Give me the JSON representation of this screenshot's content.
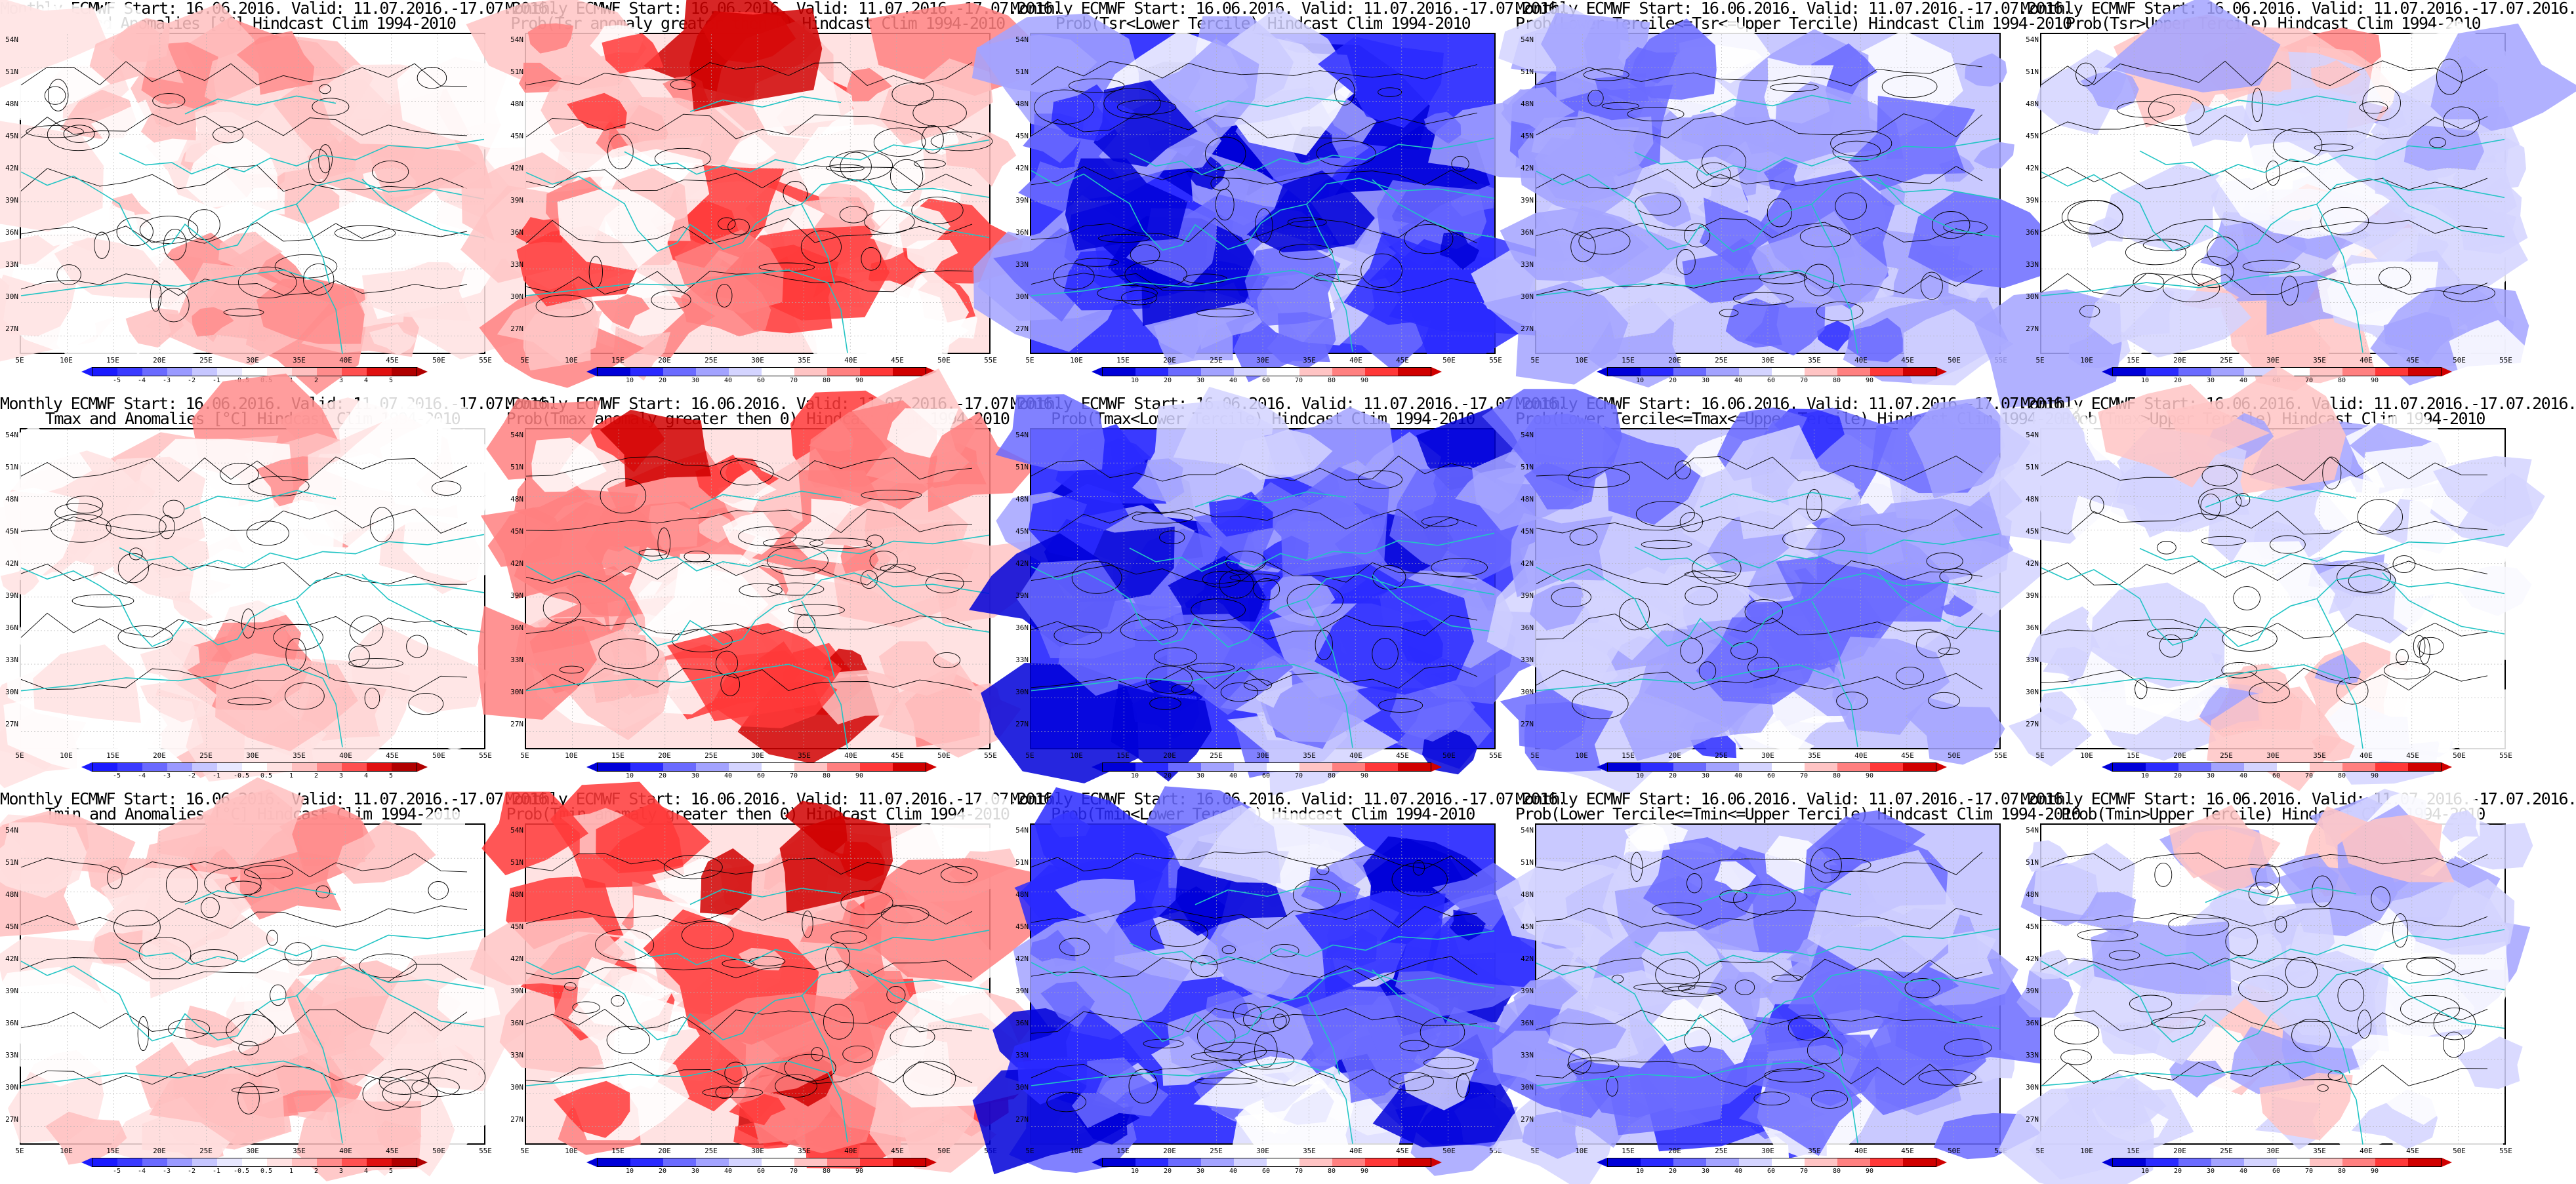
{
  "figure": {
    "rows": [
      {
        "variable": "Tsr",
        "panels": [
          {
            "id": "tsr-anomaly",
            "line1": "Monthly ECMWF Start: 16.06.2016. Valid: 11.07.2016.-17.07.2016.",
            "line2": "Tsr and Anomalies [°C] Hindcast Clim 1994-2010",
            "kind": "anomaly",
            "level": 0.45
          },
          {
            "id": "tsr-prob-gt0",
            "line1": "Monthly ECMWF Start: 16.06.2016. Valid: 11.07.2016.-17.07.2016.",
            "line2": "Prob(Tsr anomaly greater then 0) Hindcast Clim 1994-2010",
            "kind": "prob-hot",
            "level": 0.7
          },
          {
            "id": "tsr-prob-lower",
            "line1": "Monthly ECMWF Start: 16.06.2016. Valid: 11.07.2016.-17.07.2016.",
            "line2": "Prob(Tsr<Lower Tercile) Hindcast Clim 1994-2010",
            "kind": "prob-cold",
            "level": 0.8
          },
          {
            "id": "tsr-prob-middle",
            "line1": "Monthly ECMWF Start: 16.06.2016. Valid: 11.07.2016.-17.07.2016.",
            "line2": "Prob(Lower Tercile<=Tsr<=Upper Tercile) Hindcast Clim 1994-2010",
            "kind": "prob-mid",
            "level": 0.5
          },
          {
            "id": "tsr-prob-upper",
            "line1": "Monthly ECMWF Start: 16.06.2016. Valid: 11.07.2016.-17.07.2016.",
            "line2": "Prob(Tsr>Upper Tercile) Hindcast Clim 1994-2010",
            "kind": "prob-up",
            "level": 0.5
          }
        ]
      },
      {
        "variable": "Tmax",
        "panels": [
          {
            "id": "tmax-anomaly",
            "line1": "Monthly ECMWF Start: 16.06.2016. Valid: 11.07.2016.-17.07.2016.",
            "line2": "Tmax and Anomalies [°C] Hindcast Clim 1994-2010",
            "kind": "anomaly",
            "level": 0.4
          },
          {
            "id": "tmax-prob-gt0",
            "line1": "Monthly ECMWF Start: 16.06.2016. Valid: 11.07.2016.-17.07.2016.",
            "line2": "Prob(Tmax anomaly greater then 0) Hindcast Clim 1994-2010",
            "kind": "prob-hot",
            "level": 0.6
          },
          {
            "id": "tmax-prob-lower",
            "line1": "Monthly ECMWF Start: 16.06.2016. Valid: 11.07.2016.-17.07.2016.",
            "line2": "Prob(Tmax<Lower Tercile) Hindcast Clim 1994-2010",
            "kind": "prob-cold",
            "level": 0.75
          },
          {
            "id": "tmax-prob-middle",
            "line1": "Monthly ECMWF Start: 16.06.2016. Valid: 11.07.2016.-17.07.2016.",
            "line2": "Prob(Lower Tercile<=Tmax<=Upper Tercile) Hindcast Clim 1994-2010",
            "kind": "prob-mid",
            "level": 0.5
          },
          {
            "id": "tmax-prob-upper",
            "line1": "Monthly ECMWF Start: 16.06.2016. Valid: 11.07.2016.-17.07.2016.",
            "line2": "Prob(Tmax>Upper Tercile) Hindcast Clim 1994-2010",
            "kind": "prob-up",
            "level": 0.45
          }
        ]
      },
      {
        "variable": "Tmin",
        "panels": [
          {
            "id": "tmin-anomaly",
            "line1": "Monthly ECMWF Start: 16.06.2016. Valid: 11.07.2016.-17.07.2016.",
            "line2": "Tmin and Anomalies [°C] Hindcast Clim 1994-2010",
            "kind": "anomaly",
            "level": 0.5
          },
          {
            "id": "tmin-prob-gt0",
            "line1": "Monthly ECMWF Start: 16.06.2016. Valid: 11.07.2016.-17.07.2016.",
            "line2": "Prob(Tmin anomaly greater then 0) Hindcast Clim 1994-2010",
            "kind": "prob-hot",
            "level": 0.75
          },
          {
            "id": "tmin-prob-lower",
            "line1": "Monthly ECMWF Start: 16.06.2016. Valid: 11.07.2016.-17.07.2016.",
            "line2": "Prob(Tmin<Lower Tercile) Hindcast Clim 1994-2010",
            "kind": "prob-cold",
            "level": 0.85
          },
          {
            "id": "tmin-prob-middle",
            "line1": "Monthly ECMWF Start: 16.06.2016. Valid: 11.07.2016.-17.07.2016.",
            "line2": "Prob(Lower Tercile<=Tmin<=Upper Tercile) Hindcast Clim 1994-2010",
            "kind": "prob-mid",
            "level": 0.55
          },
          {
            "id": "tmin-prob-upper",
            "line1": "Monthly ECMWF Start: 16.06.2016. Valid: 11.07.2016.-17.07.2016.",
            "line2": "Prob(Tmin>Upper Tercile) Hindcast Clim 1994-2010",
            "kind": "prob-up",
            "level": 0.5
          }
        ]
      }
    ],
    "lat_labels": [
      "54N",
      "51N",
      "48N",
      "45N",
      "42N",
      "39N",
      "36N",
      "33N",
      "30N",
      "27N"
    ],
    "lon_labels": [
      "5E",
      "10E",
      "15E",
      "20E",
      "25E",
      "30E",
      "35E",
      "40E",
      "45E",
      "50E",
      "55E"
    ],
    "colorbars": {
      "anomaly": {
        "ticks": [
          "-5",
          "-4",
          "-3",
          "-2",
          "-1",
          "-0.5",
          "0.5",
          "1",
          "2",
          "3",
          "4",
          "5"
        ],
        "colors": [
          "#1a1aff",
          "#3a3aff",
          "#6a6aff",
          "#9a9aff",
          "#c6c6ff",
          "#e8e8ff",
          "#ffffff",
          "#ffe2e2",
          "#ffc0c0",
          "#ff8c8c",
          "#ff5050",
          "#e01010",
          "#b00000"
        ]
      },
      "probability": {
        "ticks": [
          "10",
          "20",
          "30",
          "40",
          "60",
          "70",
          "80",
          "90"
        ],
        "colors": [
          "#0000d8",
          "#2a2aff",
          "#6b6bff",
          "#a3a3ff",
          "#d4d4ff",
          "#ffffff",
          "#ffc4c4",
          "#ff8080",
          "#ff3838",
          "#d00000"
        ]
      }
    },
    "palette": {
      "coast": "#22c4c4",
      "contour": "#000000",
      "grid": "#b0b0b0"
    }
  }
}
